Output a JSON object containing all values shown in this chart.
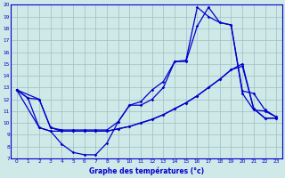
{
  "bg_color": "#cfe8e8",
  "line_color": "#0000cc",
  "grid_color": "#9fbfbf",
  "xlim": [
    -0.5,
    23.5
  ],
  "ylim": [
    7,
    20
  ],
  "xticks": [
    0,
    1,
    2,
    3,
    4,
    5,
    6,
    7,
    8,
    9,
    10,
    11,
    12,
    13,
    14,
    15,
    16,
    17,
    18,
    19,
    20,
    21,
    22,
    23
  ],
  "yticks": [
    7,
    8,
    9,
    10,
    11,
    12,
    13,
    14,
    15,
    16,
    17,
    18,
    19,
    20
  ],
  "xlabel": "Graphe des températures (°c)",
  "curves": [
    {
      "x": [
        0,
        1,
        2,
        3,
        4,
        5,
        6,
        7,
        8,
        9,
        10,
        11,
        12,
        13,
        14,
        15,
        16,
        17,
        18,
        19,
        20,
        21,
        22,
        23
      ],
      "y": [
        12.8,
        12.1,
        9.6,
        9.3,
        8.2,
        7.5,
        7.3,
        7.3,
        8.3,
        10.1,
        11.5,
        11.5,
        12.0,
        13.0,
        15.2,
        15.2,
        18.2,
        19.8,
        18.5,
        18.3,
        12.5,
        11.1,
        11.0,
        10.5
      ]
    },
    {
      "x": [
        0,
        2,
        3,
        4,
        5,
        6,
        7,
        8,
        9,
        10,
        11,
        12,
        13,
        14,
        15,
        16,
        17,
        18,
        19,
        20,
        21,
        22,
        23
      ],
      "y": [
        12.8,
        9.6,
        9.3,
        9.3,
        9.3,
        9.3,
        9.3,
        9.3,
        9.5,
        9.7,
        10.0,
        10.3,
        10.7,
        11.2,
        11.7,
        12.3,
        13.0,
        13.7,
        14.5,
        15.0,
        11.2,
        10.4,
        10.4
      ]
    },
    {
      "x": [
        0,
        2,
        3,
        4,
        5,
        6,
        7,
        8,
        9,
        10,
        11,
        12,
        13,
        14,
        15,
        16,
        17,
        18,
        19,
        20,
        21,
        22,
        23
      ],
      "y": [
        12.8,
        12.0,
        9.6,
        9.4,
        9.4,
        9.4,
        9.4,
        9.4,
        10.1,
        11.5,
        11.8,
        12.8,
        13.5,
        15.2,
        15.3,
        19.8,
        19.0,
        18.5,
        18.3,
        12.7,
        12.5,
        11.1,
        10.5
      ]
    },
    {
      "x": [
        0,
        1,
        2,
        3,
        4,
        5,
        6,
        7,
        8,
        9,
        10,
        11,
        12,
        13,
        14,
        15,
        16,
        17,
        18,
        19,
        20,
        21,
        22,
        23
      ],
      "y": [
        12.8,
        12.1,
        12.0,
        9.6,
        9.3,
        9.3,
        9.3,
        9.3,
        9.3,
        9.5,
        9.7,
        10.0,
        10.3,
        10.7,
        11.2,
        11.7,
        12.3,
        13.0,
        13.7,
        14.5,
        14.8,
        11.2,
        10.4,
        10.4
      ]
    }
  ]
}
